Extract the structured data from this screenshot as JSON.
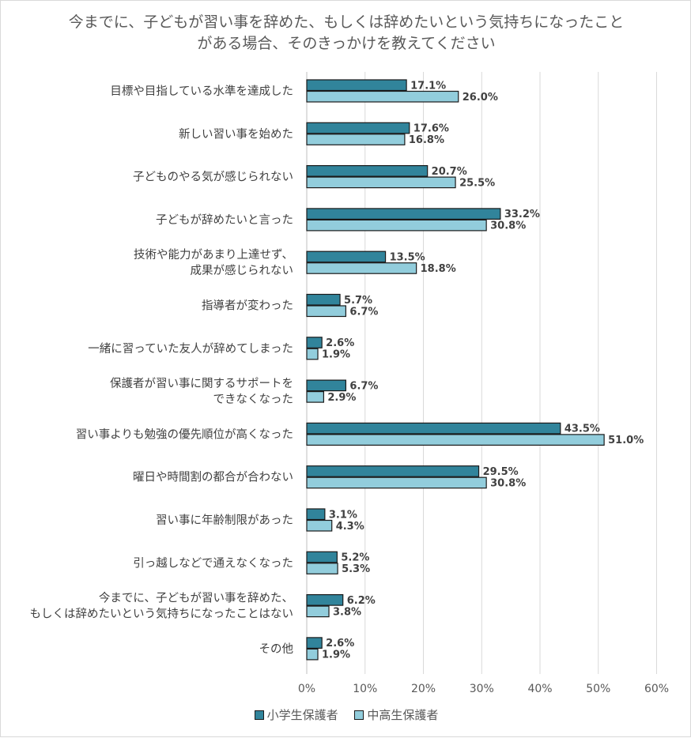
{
  "chart_data": {
    "type": "bar",
    "orientation": "horizontal",
    "title_lines": [
      "今までに、子どもが習い事を辞めた、もしくは辞めたいという気持ちになったこと",
      "がある場合、そのきっかけを教えてください"
    ],
    "categories": [
      [
        "目標や目指している水準を達成した"
      ],
      [
        "新しい習い事を始めた"
      ],
      [
        "子どものやる気が感じられない"
      ],
      [
        "子どもが辞めたいと言った"
      ],
      [
        "技術や能力があまり上達せず、",
        "成果が感じられない"
      ],
      [
        "指導者が変わった"
      ],
      [
        "一緒に習っていた友人が辞めてしまった"
      ],
      [
        "保護者が習い事に関するサポートを",
        "できなくなった"
      ],
      [
        "習い事よりも勉強の優先順位が高くなった"
      ],
      [
        "曜日や時間割の都合が合わない"
      ],
      [
        "習い事に年齢制限があった"
      ],
      [
        "引っ越しなどで通えなくなった"
      ],
      [
        "今までに、子どもが習い事を辞めた、",
        "もしくは辞めたいという気持ちになったことはない"
      ],
      [
        "その他"
      ]
    ],
    "series": [
      {
        "name": "小学生保護者",
        "color": "#31849b",
        "values": [
          17.1,
          17.6,
          20.7,
          33.2,
          13.5,
          5.7,
          2.6,
          6.7,
          43.5,
          29.5,
          3.1,
          5.2,
          6.2,
          2.6
        ],
        "labels": [
          "17.1%",
          "17.6%",
          "20.7%",
          "33.2%",
          "13.5%",
          "5.7%",
          "2.6%",
          "6.7%",
          "43.5%",
          "29.5%",
          "3.1%",
          "5.2%",
          "6.2%",
          "2.6%"
        ]
      },
      {
        "name": "中高生保護者",
        "color": "#92cddc",
        "values": [
          26.0,
          16.8,
          25.5,
          30.8,
          18.8,
          6.7,
          1.9,
          2.9,
          51.0,
          30.8,
          4.3,
          5.3,
          3.8,
          1.9
        ],
        "labels": [
          "26.0%",
          "16.8%",
          "25.5%",
          "30.8%",
          "18.8%",
          "6.7%",
          "1.9%",
          "2.9%",
          "51.0%",
          "30.8%",
          "4.3%",
          "5.3%",
          "3.8%",
          "1.9%"
        ]
      }
    ],
    "xlim": [
      0,
      60
    ],
    "x_ticks": [
      0,
      10,
      20,
      30,
      40,
      50,
      60
    ],
    "x_tick_labels": [
      "0%",
      "10%",
      "20%",
      "30%",
      "40%",
      "50%",
      "60%"
    ],
    "grid": true,
    "legend_position": "bottom"
  }
}
